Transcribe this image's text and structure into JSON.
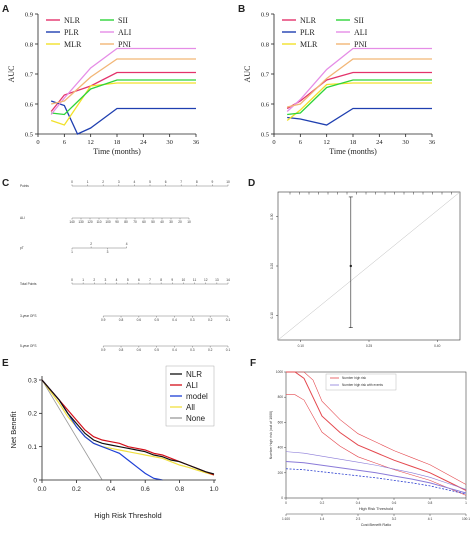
{
  "colors": {
    "NLR": "#e3336b",
    "PLR": "#1f3fb0",
    "MLR": "#f2e12a",
    "SII": "#2fd43a",
    "ALI": "#e58de6",
    "PNI": "#f2b676",
    "E_NLR": "#111111",
    "E_ALI": "#d40f1a",
    "E_model": "#1d3fd6",
    "E_All": "#f0e040",
    "E_None": "#9a9a9a",
    "F_risk": "#e4484e",
    "F_events": "#8a7ad8",
    "F_dash": "#2c3fd0"
  },
  "panels": {
    "A": {
      "letter": "A"
    },
    "B": {
      "letter": "B"
    },
    "C": {
      "letter": "C"
    },
    "D": {
      "letter": "D"
    },
    "E": {
      "letter": "E"
    },
    "F": {
      "letter": "F"
    }
  },
  "chart_data": [
    {
      "id": "A",
      "type": "line",
      "xlabel": "Time (months)",
      "ylabel": "AUC",
      "xlim": [
        0,
        36
      ],
      "ylim": [
        0.5,
        0.9
      ],
      "xticks": [
        "0",
        "6",
        "12",
        "18",
        "24",
        "30",
        "36"
      ],
      "yticks": [
        "0.5",
        "0.6",
        "0.7",
        "0.8",
        "0.9"
      ],
      "legend": [
        "NLR",
        "PLR",
        "MLR",
        "SII",
        "ALI",
        "PNI"
      ],
      "series": [
        {
          "name": "NLR",
          "x": [
            3,
            6,
            12,
            18,
            36
          ],
          "y": [
            0.575,
            0.63,
            0.66,
            0.705,
            0.705
          ]
        },
        {
          "name": "PLR",
          "x": [
            3,
            6,
            9,
            12,
            18,
            36
          ],
          "y": [
            0.61,
            0.595,
            0.5,
            0.52,
            0.585,
            0.585
          ]
        },
        {
          "name": "MLR",
          "x": [
            3,
            6,
            12,
            18,
            36
          ],
          "y": [
            0.545,
            0.53,
            0.66,
            0.67,
            0.67
          ]
        },
        {
          "name": "SII",
          "x": [
            3,
            6,
            12,
            18,
            36
          ],
          "y": [
            0.57,
            0.565,
            0.65,
            0.68,
            0.68
          ]
        },
        {
          "name": "ALI",
          "x": [
            3,
            6,
            12,
            18,
            36
          ],
          "y": [
            0.565,
            0.62,
            0.72,
            0.785,
            0.785
          ]
        },
        {
          "name": "PNI",
          "x": [
            3,
            6,
            12,
            18,
            36
          ],
          "y": [
            0.6,
            0.61,
            0.69,
            0.75,
            0.75
          ]
        }
      ]
    },
    {
      "id": "B",
      "type": "line",
      "xlabel": "Time (months)",
      "ylabel": "AUC",
      "xlim": [
        0,
        36
      ],
      "ylim": [
        0.5,
        0.9
      ],
      "xticks": [
        "0",
        "6",
        "12",
        "18",
        "24",
        "30",
        "36"
      ],
      "yticks": [
        "0.5",
        "0.6",
        "0.7",
        "0.8",
        "0.9"
      ],
      "legend": [
        "NLR",
        "PLR",
        "MLR",
        "SII",
        "ALI",
        "PNI"
      ],
      "series": [
        {
          "name": "NLR",
          "x": [
            3,
            6,
            12,
            18,
            36
          ],
          "y": [
            0.585,
            0.61,
            0.68,
            0.705,
            0.705
          ]
        },
        {
          "name": "PLR",
          "x": [
            3,
            6,
            12,
            18,
            36
          ],
          "y": [
            0.555,
            0.55,
            0.53,
            0.585,
            0.585
          ]
        },
        {
          "name": "MLR",
          "x": [
            3,
            6,
            12,
            18,
            36
          ],
          "y": [
            0.545,
            0.58,
            0.665,
            0.67,
            0.67
          ]
        },
        {
          "name": "SII",
          "x": [
            3,
            6,
            12,
            18,
            36
          ],
          "y": [
            0.565,
            0.57,
            0.655,
            0.68,
            0.68
          ]
        },
        {
          "name": "ALI",
          "x": [
            3,
            6,
            12,
            18,
            36
          ],
          "y": [
            0.575,
            0.615,
            0.715,
            0.785,
            0.785
          ]
        },
        {
          "name": "PNI",
          "x": [
            3,
            6,
            12,
            18,
            36
          ],
          "y": [
            0.59,
            0.6,
            0.685,
            0.75,
            0.75
          ]
        }
      ]
    },
    {
      "id": "C",
      "type": "table",
      "rows": [
        {
          "label": "Points",
          "ticks": [
            "0",
            "1",
            "2",
            "3",
            "4",
            "5",
            "6",
            "7",
            "8",
            "9",
            "10"
          ],
          "range": [
            0,
            10
          ]
        },
        {
          "label": "ALI",
          "ticks": [
            "140",
            "130",
            "120",
            "110",
            "100",
            "90",
            "80",
            "70",
            "60",
            "50",
            "40",
            "30",
            "20",
            "10"
          ],
          "range": [
            0,
            7.5
          ]
        },
        {
          "label": "pT",
          "ticks_top": [
            "2",
            "4"
          ],
          "ticks_bottom": [
            "1",
            "3"
          ],
          "range": [
            0,
            3.5
          ]
        },
        {
          "label": "Total Points",
          "ticks": [
            "0",
            "1",
            "2",
            "3",
            "4",
            "5",
            "6",
            "7",
            "8",
            "9",
            "10",
            "11",
            "12",
            "13",
            "14"
          ],
          "range": [
            0,
            14
          ]
        },
        {
          "label": "3-year OFS",
          "ticks": [
            "0.9",
            "0.8",
            "0.6",
            "0.5",
            "0.4",
            "0.3",
            "0.2",
            "0.1"
          ],
          "range": [
            2,
            10
          ]
        },
        {
          "label": "5-year OFS",
          "ticks": [
            "0.9",
            "0.8",
            "0.6",
            "0.5",
            "0.4",
            "0.3",
            "0.2",
            "0.1"
          ],
          "range": [
            2,
            10
          ]
        }
      ]
    },
    {
      "id": "D",
      "type": "scatter",
      "xticks": [
        "0.10",
        "0.25",
        "0.40"
      ],
      "yticks": [
        "0.30",
        "0.20",
        "0.10"
      ],
      "xlim": [
        0.05,
        0.45
      ],
      "ylim": [
        0.05,
        0.35
      ],
      "points": [
        {
          "x": 0.21,
          "y": 0.2,
          "ylow": 0.075,
          "yhigh": 0.34
        }
      ]
    },
    {
      "id": "E",
      "type": "line",
      "xlabel": "High Risk Threshold",
      "ylabel": "Net Benefit",
      "xlim": [
        0,
        1
      ],
      "ylim": [
        0,
        0.3
      ],
      "xticks": [
        "0.0",
        "0.2",
        "0.4",
        "0.6",
        "0.8",
        "1.0"
      ],
      "yticks": [
        "0",
        "0.1",
        "0.2",
        "0.3"
      ],
      "legend": [
        "NLR",
        "ALI",
        "model",
        "All",
        "None"
      ],
      "series": [
        {
          "name": "NLR",
          "x": [
            0,
            0.05,
            0.1,
            0.15,
            0.2,
            0.25,
            0.3,
            0.35,
            0.4,
            0.45,
            0.5,
            0.55,
            0.6,
            0.65,
            0.7,
            0.75,
            0.8,
            0.85,
            0.9,
            0.95,
            1.0
          ],
          "y": [
            0.3,
            0.27,
            0.24,
            0.2,
            0.17,
            0.14,
            0.12,
            0.11,
            0.105,
            0.1,
            0.095,
            0.09,
            0.085,
            0.075,
            0.07,
            0.06,
            0.055,
            0.045,
            0.035,
            0.025,
            0.018
          ]
        },
        {
          "name": "ALI",
          "x": [
            0,
            0.05,
            0.1,
            0.15,
            0.2,
            0.25,
            0.3,
            0.35,
            0.4,
            0.45,
            0.5,
            0.55,
            0.6,
            0.65,
            0.7,
            0.75,
            0.8,
            0.85,
            0.9,
            0.95,
            1.0
          ],
          "y": [
            0.3,
            0.27,
            0.24,
            0.21,
            0.18,
            0.15,
            0.13,
            0.12,
            0.115,
            0.11,
            0.1,
            0.095,
            0.09,
            0.08,
            0.075,
            0.065,
            0.055,
            0.045,
            0.035,
            0.025,
            0.015
          ]
        },
        {
          "name": "model",
          "x": [
            0,
            0.05,
            0.1,
            0.15,
            0.2,
            0.25,
            0.3,
            0.35,
            0.4,
            0.45,
            0.5,
            0.55,
            0.6,
            0.65,
            0.7
          ],
          "y": [
            0.3,
            0.27,
            0.24,
            0.2,
            0.16,
            0.13,
            0.11,
            0.1,
            0.09,
            0.08,
            0.06,
            0.04,
            0.02,
            0.005,
            0
          ]
        },
        {
          "name": "All",
          "x": [
            0,
            0.05,
            0.1,
            0.15,
            0.2,
            0.25,
            0.3,
            0.35,
            0.4,
            0.45,
            0.5,
            0.55,
            0.6,
            0.65,
            0.7,
            0.75,
            0.8,
            0.85,
            0.9,
            0.95,
            1.0
          ],
          "y": [
            0.3,
            0.265,
            0.23,
            0.19,
            0.16,
            0.13,
            0.11,
            0.1,
            0.095,
            0.09,
            0.085,
            0.08,
            0.075,
            0.07,
            0.065,
            0.055,
            0.045,
            0.038,
            0.03,
            0.022,
            0.015
          ]
        },
        {
          "name": "None",
          "x": [
            0,
            0.35
          ],
          "y": [
            0.3,
            0
          ]
        }
      ]
    },
    {
      "id": "F",
      "type": "line",
      "xlabel": "High Risk Threshold",
      "x2label": "Cost:Benefit Ratio",
      "ylabel": "Number high risk (out of 1000)",
      "xlim": [
        0,
        1
      ],
      "ylim": [
        0,
        1000
      ],
      "xticks": [
        "0",
        "0.2",
        "0.4",
        "0.6",
        "0.8",
        "1"
      ],
      "x2ticks": [
        "1:100",
        "1:4",
        "2:3",
        "3:2",
        "4:1",
        "100:1"
      ],
      "yticks": [
        "0",
        "200",
        "400",
        "600",
        "800",
        "1000"
      ],
      "legend": [
        "Number high risk",
        "Number high risk with events"
      ],
      "series": [
        {
          "name": "Number high risk",
          "x": [
            0,
            0.05,
            0.1,
            0.15,
            0.2,
            0.3,
            0.4,
            0.5,
            0.6,
            0.7,
            0.8,
            0.9,
            1.0
          ],
          "y": [
            1000,
            1000,
            950,
            800,
            650,
            520,
            420,
            360,
            300,
            250,
            200,
            130,
            60
          ]
        },
        {
          "name": "Number high risk with events",
          "x": [
            0,
            0.1,
            0.2,
            0.3,
            0.4,
            0.5,
            0.6,
            0.7,
            0.8,
            0.9,
            1.0
          ],
          "y": [
            290,
            280,
            260,
            240,
            220,
            200,
            175,
            150,
            120,
            80,
            40
          ]
        }
      ]
    }
  ]
}
